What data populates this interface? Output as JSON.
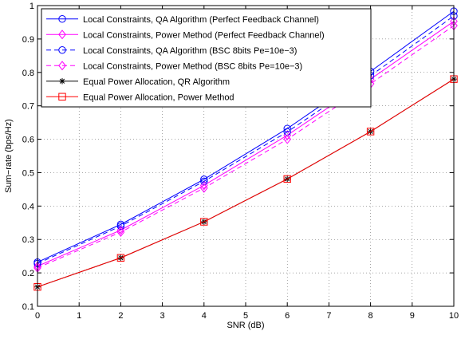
{
  "chart_data": {
    "type": "line",
    "xlabel": "SNR (dB)",
    "ylabel": "Sum−rate (bps/Hz)",
    "xlim": [
      0,
      10
    ],
    "ylim": [
      0.1,
      1
    ],
    "xticks": [
      "0",
      "1",
      "2",
      "3",
      "4",
      "5",
      "6",
      "7",
      "8",
      "9",
      "10"
    ],
    "yticks": [
      "0.1",
      "0.2",
      "0.3",
      "0.4",
      "0.5",
      "0.6",
      "0.7",
      "0.8",
      "0.9",
      "1"
    ],
    "grid": true,
    "legend_position": "top-left",
    "x": [
      0,
      2,
      4,
      6,
      8,
      10
    ],
    "series": [
      {
        "name": "Local Constraints, QA Algorithm (Perfect Feedback Channel)",
        "color": "#0000ff",
        "dash": "solid",
        "marker": "circle",
        "values": [
          0.232,
          0.345,
          0.48,
          0.632,
          0.803,
          0.983
        ]
      },
      {
        "name": "Local Constraints, Power Method (Perfect Feedback Channel)",
        "color": "#ff00ff",
        "dash": "solid",
        "marker": "diamond",
        "values": [
          0.22,
          0.328,
          0.462,
          0.612,
          0.78,
          0.953
        ]
      },
      {
        "name": "Local Constraints, QA Algorithm (BSC 8bits Pe=10e−3)",
        "color": "#0000ff",
        "dash": "dashed",
        "marker": "circle",
        "values": [
          0.228,
          0.34,
          0.474,
          0.622,
          0.79,
          0.969
        ]
      },
      {
        "name": "Local Constraints, Power Method (BSC 8bits Pe=10e−3)",
        "color": "#ff00ff",
        "dash": "dashed",
        "marker": "diamond",
        "values": [
          0.215,
          0.322,
          0.454,
          0.6,
          0.766,
          0.94
        ]
      },
      {
        "name": "Equal Power Allocation, QR Algorithm",
        "color": "#000000",
        "dash": "solid",
        "marker": "star",
        "values": [
          0.158,
          0.245,
          0.353,
          0.481,
          0.623,
          0.78
        ]
      },
      {
        "name": "Equal Power Allocation, Power Method",
        "color": "#ff0000",
        "dash": "solid",
        "marker": "square",
        "values": [
          0.158,
          0.245,
          0.353,
          0.481,
          0.623,
          0.78
        ]
      }
    ]
  }
}
